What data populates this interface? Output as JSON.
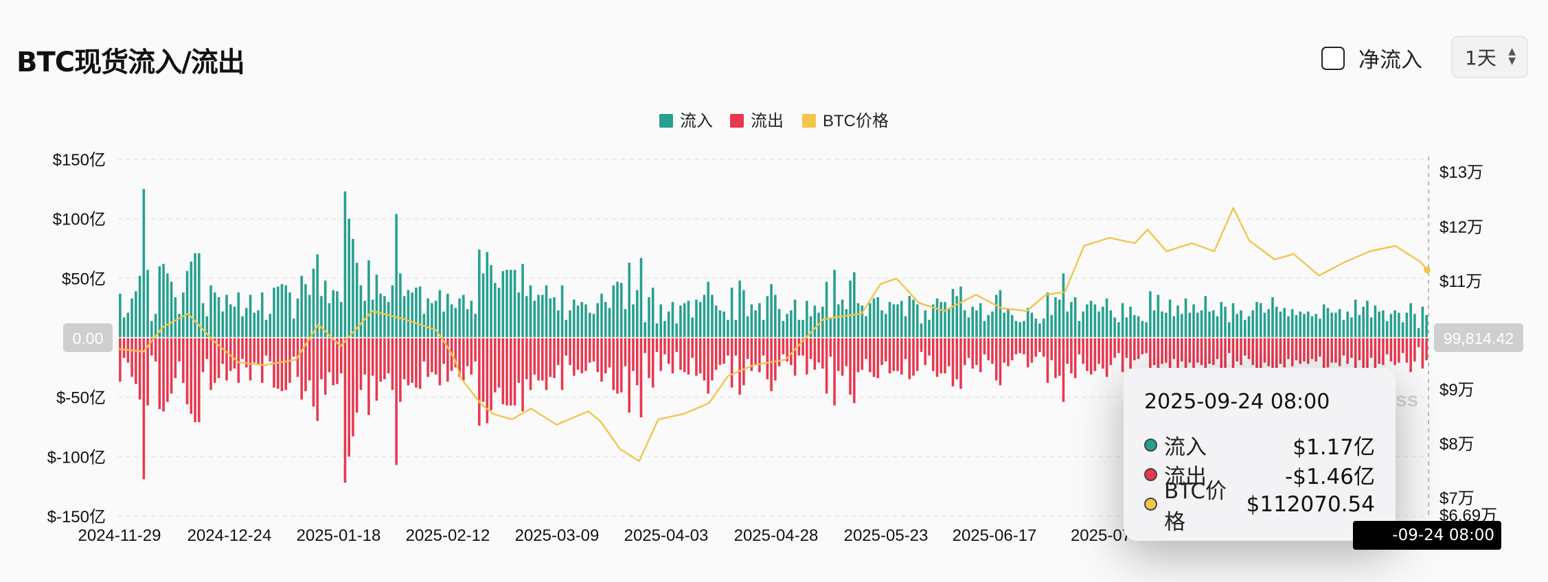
{
  "header": {
    "title": "BTC现货流入/流出",
    "net_flow_label": "净流入",
    "period_value": "1天"
  },
  "colors": {
    "inflow": "#26a08f",
    "outflow": "#e8384f",
    "price": "#f1c44d"
  },
  "chart_data": {
    "type": "bar",
    "legend": [
      "流入",
      "流出",
      "BTC价格"
    ],
    "legend_position": "top-center",
    "x_tick_labels": [
      "2024-11-29",
      "2024-12-24",
      "2025-01-18",
      "2025-02-12",
      "2025-03-09",
      "2025-04-03",
      "2025-04-28",
      "2025-05-23",
      "2025-06-17",
      "2025-07-"
    ],
    "x_range": [
      "2024-11-29",
      "2025-09-24"
    ],
    "y_left_ticks": [
      "$150亿",
      "$100亿",
      "$50亿",
      "$-50亿",
      "$-100亿",
      "$-150亿"
    ],
    "y_left_range": [
      -150,
      150
    ],
    "y_left_unit": "亿 USD",
    "y_right_ticks": [
      "$13万",
      "$12万",
      "$11万",
      "$9万",
      "$8万",
      "$7万",
      "$6.69万"
    ],
    "y_right_range": [
      66900,
      133000
    ],
    "zero_label": "0.00",
    "right_cursor_label": "99,814.42",
    "grid": "horizontal dashed",
    "series": [
      {
        "name": "流入",
        "type": "bar",
        "note": "daily inflow in 亿 USD",
        "values": [
          37,
          17,
          21,
          33,
          39,
          52,
          125,
          57,
          14,
          20,
          60,
          62,
          54,
          47,
          34,
          20,
          38,
          56,
          64,
          71,
          71,
          29,
          18,
          44,
          38,
          34,
          22,
          36,
          28,
          26,
          38,
          18,
          25,
          36,
          21,
          23,
          38,
          15,
          20,
          42,
          43,
          45,
          44,
          38,
          16,
          33,
          52,
          45,
          36,
          58,
          70,
          35,
          48,
          29,
          40,
          39,
          30,
          123,
          100,
          83,
          63,
          44,
          31,
          65,
          32,
          53,
          37,
          35,
          30,
          44,
          104,
          54,
          35,
          40,
          38,
          42,
          43,
          20,
          33,
          29,
          31,
          40,
          22,
          37,
          28,
          25,
          33,
          36,
          24,
          31,
          20,
          74,
          54,
          72,
          61,
          46,
          42,
          56,
          57,
          57,
          57,
          38,
          62,
          35,
          44,
          31,
          36,
          36,
          44,
          33,
          34,
          23,
          44,
          15,
          23,
          32,
          27,
          30,
          28,
          21,
          20,
          29,
          37,
          30,
          25,
          44,
          47,
          46,
          24,
          63,
          28,
          40,
          67,
          13,
          34,
          42,
          12,
          28,
          14,
          22,
          30,
          12,
          27,
          29,
          31,
          17,
          32,
          30,
          36,
          47,
          36,
          27,
          23,
          22,
          15,
          42,
          15,
          48,
          40,
          18,
          28,
          23,
          29,
          15,
          35,
          45,
          36,
          24,
          14,
          20,
          23,
          32,
          15,
          15,
          31,
          18,
          27,
          21,
          26,
          47,
          16,
          57,
          28,
          32,
          24,
          48,
          55,
          29,
          27,
          18,
          29,
          33,
          34,
          23,
          20,
          30,
          28,
          28,
          31,
          18,
          35,
          32,
          28,
          12,
          23,
          15,
          28,
          33,
          30,
          30,
          24,
          41,
          35,
          43,
          23,
          17,
          26,
          23,
          29,
          14,
          19,
          22,
          36,
          40,
          21,
          24,
          19,
          14,
          13,
          14,
          25,
          21,
          16,
          12,
          16,
          38,
          19,
          34,
          32,
          54,
          22,
          30,
          34,
          14,
          22,
          28,
          31,
          28,
          22,
          26,
          33,
          23,
          17,
          13,
          29,
          17,
          26,
          19,
          18,
          14,
          13,
          39,
          23,
          36,
          22,
          21,
          32,
          18,
          27,
          20,
          33,
          21,
          28,
          21,
          23,
          35,
          22,
          23,
          18,
          30,
          26,
          13,
          29,
          20,
          23,
          15,
          18,
          23,
          30,
          29,
          21,
          24,
          34,
          26,
          22,
          25,
          18,
          24,
          19,
          22,
          20,
          22,
          18,
          20,
          16,
          28,
          25,
          21,
          21,
          24,
          15,
          22,
          17,
          32,
          19,
          26,
          31,
          17,
          27,
          22,
          23,
          14,
          20,
          23,
          21,
          13,
          21,
          29,
          20,
          8,
          26,
          19
        ]
      },
      {
        "name": "流出",
        "type": "bar",
        "note": "daily outflow in 亿 USD (negative)",
        "values": [
          -37,
          -17,
          -21,
          -33,
          -39,
          -52,
          -119,
          -57,
          -15,
          -20,
          -60,
          -62,
          -54,
          -47,
          -34,
          -20,
          -38,
          -56,
          -64,
          -71,
          -71,
          -29,
          -18,
          -44,
          -38,
          -34,
          -22,
          -36,
          -28,
          -26,
          -38,
          -18,
          -25,
          -36,
          -21,
          -23,
          -38,
          -15,
          -20,
          -42,
          -43,
          -45,
          -44,
          -38,
          -16,
          -33,
          -52,
          -45,
          -36,
          -58,
          -70,
          -35,
          -48,
          -29,
          -40,
          -39,
          -30,
          -122,
          -100,
          -83,
          -63,
          -44,
          -31,
          -65,
          -32,
          -53,
          -37,
          -35,
          -30,
          -44,
          -107,
          -54,
          -35,
          -40,
          -38,
          -42,
          -43,
          -20,
          -33,
          -29,
          -31,
          -40,
          -22,
          -37,
          -28,
          -25,
          -33,
          -36,
          -24,
          -31,
          -20,
          -74,
          -54,
          -72,
          -61,
          -46,
          -42,
          -56,
          -57,
          -57,
          -57,
          -38,
          -62,
          -35,
          -44,
          -31,
          -36,
          -36,
          -44,
          -33,
          -34,
          -23,
          -44,
          -15,
          -23,
          -32,
          -27,
          -30,
          -28,
          -21,
          -20,
          -29,
          -37,
          -30,
          -25,
          -44,
          -47,
          -46,
          -24,
          -63,
          -28,
          -40,
          -67,
          -13,
          -34,
          -42,
          -12,
          -28,
          -14,
          -22,
          -30,
          -12,
          -27,
          -29,
          -31,
          -17,
          -32,
          -30,
          -36,
          -47,
          -36,
          -27,
          -23,
          -22,
          -15,
          -42,
          -15,
          -48,
          -40,
          -18,
          -28,
          -23,
          -29,
          -15,
          -35,
          -45,
          -36,
          -24,
          -14,
          -20,
          -23,
          -32,
          -15,
          -15,
          -31,
          -18,
          -27,
          -21,
          -26,
          -47,
          -16,
          -57,
          -28,
          -32,
          -24,
          -48,
          -55,
          -29,
          -27,
          -18,
          -29,
          -33,
          -34,
          -23,
          -20,
          -30,
          -28,
          -28,
          -31,
          -18,
          -35,
          -32,
          -28,
          -12,
          -23,
          -15,
          -28,
          -33,
          -30,
          -30,
          -24,
          -41,
          -35,
          -43,
          -23,
          -17,
          -26,
          -23,
          -29,
          -14,
          -19,
          -22,
          -36,
          -40,
          -21,
          -24,
          -19,
          -14,
          -13,
          -14,
          -25,
          -21,
          -16,
          -12,
          -16,
          -38,
          -19,
          -34,
          -32,
          -54,
          -22,
          -30,
          -34,
          -14,
          -22,
          -28,
          -31,
          -28,
          -22,
          -26,
          -33,
          -23,
          -17,
          -13,
          -29,
          -17,
          -26,
          -19,
          -18,
          -14,
          -13,
          -39,
          -23,
          -36,
          -22,
          -21,
          -32,
          -18,
          -27,
          -20,
          -33,
          -21,
          -28,
          -21,
          -23,
          -35,
          -22,
          -23,
          -18,
          -30,
          -26,
          -13,
          -29,
          -20,
          -23,
          -15,
          -18,
          -23,
          -30,
          -29,
          -21,
          -24,
          -34,
          -26,
          -22,
          -25,
          -18,
          -24,
          -19,
          -22,
          -20,
          -22,
          -18,
          -20,
          -16,
          -28,
          -25,
          -21,
          -21,
          -24,
          -15,
          -22,
          -17,
          -32,
          -19,
          -26,
          -31,
          -17,
          -27,
          -22,
          -23,
          -14,
          -20,
          -23,
          -21,
          -13,
          -21,
          -29,
          -20,
          -8,
          -26,
          -19
        ]
      },
      {
        "name": "BTC价格",
        "type": "line",
        "axis": "right",
        "note": "USD, sampled",
        "points": [
          [
            0,
            97500
          ],
          [
            8,
            97000
          ],
          [
            14,
            101500
          ],
          [
            22,
            104000
          ],
          [
            30,
            99000
          ],
          [
            38,
            95000
          ],
          [
            46,
            94500
          ],
          [
            56,
            95500
          ],
          [
            63,
            102000
          ],
          [
            70,
            98000
          ],
          [
            80,
            104500
          ],
          [
            90,
            103000
          ],
          [
            100,
            101000
          ],
          [
            103,
            98500
          ],
          [
            106,
            95500
          ],
          [
            108,
            92000
          ],
          [
            114,
            87500
          ],
          [
            118,
            85500
          ],
          [
            124,
            84500
          ],
          [
            130,
            86500
          ],
          [
            138,
            83500
          ],
          [
            148,
            86000
          ],
          [
            152,
            84000
          ],
          [
            158,
            79000
          ],
          [
            164,
            76800
          ],
          [
            170,
            84500
          ],
          [
            178,
            85500
          ],
          [
            186,
            87500
          ],
          [
            192,
            92500
          ],
          [
            200,
            94500
          ],
          [
            210,
            95500
          ],
          [
            222,
            103000
          ],
          [
            228,
            103500
          ],
          [
            234,
            104000
          ],
          [
            240,
            109500
          ],
          [
            245,
            110500
          ],
          [
            252,
            106000
          ],
          [
            260,
            104500
          ],
          [
            270,
            107500
          ],
          [
            278,
            105000
          ],
          [
            286,
            104500
          ],
          [
            292,
            107500
          ],
          [
            298,
            108000
          ],
          [
            304,
            116500
          ],
          [
            312,
            118000
          ],
          [
            320,
            117000
          ],
          [
            324,
            119500
          ],
          [
            330,
            115500
          ],
          [
            338,
            117000
          ],
          [
            345,
            115500
          ],
          [
            351,
            123500
          ],
          [
            356,
            117500
          ],
          [
            364,
            114000
          ],
          [
            370,
            115000
          ],
          [
            378,
            111000
          ],
          [
            386,
            113500
          ],
          [
            394,
            115500
          ],
          [
            402,
            116500
          ],
          [
            410,
            113500
          ],
          [
            412,
            112070.54
          ]
        ]
      }
    ]
  },
  "watermark_fragment": "ss",
  "tooltip": {
    "date": "2025-09-24 08:00",
    "rows": [
      {
        "name": "流入",
        "value": "$1.17亿",
        "color": "#26a08f"
      },
      {
        "name": "流出",
        "value": "-$1.46亿",
        "color": "#e8384f"
      },
      {
        "name": "BTC价格",
        "value": "$112070.54",
        "color": "#f1c44d"
      }
    ]
  },
  "x_cursor_label": "-09-24 08:00"
}
